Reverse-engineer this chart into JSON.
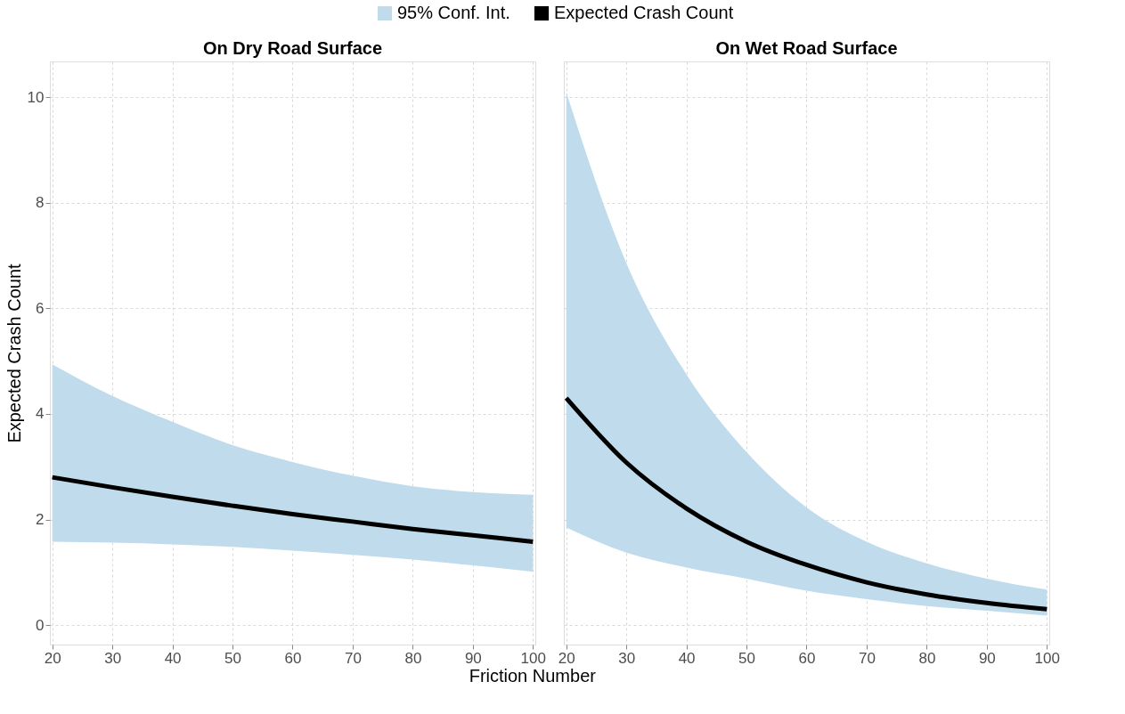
{
  "chart_data": [
    {
      "type": "line",
      "title": "On Dry Road Surface",
      "xlabel": "Friction Number",
      "ylabel": "Expected Crash Count",
      "x": [
        20,
        30,
        40,
        50,
        60,
        70,
        80,
        90,
        100
      ],
      "series": [
        {
          "name": "95% Conf. Int.",
          "type": "area",
          "color": "#c0dcec",
          "values": [
            null,
            null,
            null,
            null,
            null,
            null,
            null,
            null,
            null
          ],
          "lower": [
            1.58,
            1.56,
            1.53,
            1.48,
            1.41,
            1.33,
            1.24,
            1.13,
            1.01
          ],
          "upper": [
            4.94,
            4.34,
            3.85,
            3.41,
            3.09,
            2.83,
            2.63,
            2.52,
            2.47
          ]
        },
        {
          "name": "Expected Crash Count",
          "color": "#000000",
          "values": [
            2.8,
            2.61,
            2.43,
            2.26,
            2.1,
            1.96,
            1.82,
            1.7,
            1.58
          ]
        }
      ],
      "xlim": [
        19.6,
        100.4
      ],
      "ylim": [
        -0.37,
        10.68
      ],
      "xticks": [
        20,
        30,
        40,
        50,
        60,
        70,
        80,
        90,
        100
      ],
      "yticks": [
        0,
        2,
        4,
        6,
        8,
        10
      ],
      "grid": true,
      "legend": "top"
    },
    {
      "type": "line",
      "title": "On Wet Road Surface",
      "x": [
        20,
        30,
        40,
        50,
        60,
        70,
        80,
        90,
        100
      ],
      "series": [
        {
          "type": "area",
          "color": "#c0dcec",
          "values": [
            null,
            null,
            null,
            null,
            null,
            null,
            null,
            null,
            null
          ],
          "lower": [
            1.85,
            1.37,
            1.09,
            0.88,
            0.65,
            0.49,
            0.36,
            0.27,
            0.18
          ],
          "upper": [
            10.1,
            6.86,
            4.75,
            3.28,
            2.23,
            1.58,
            1.17,
            0.88,
            0.67
          ]
        },
        {
          "color": "#000000",
          "values": [
            4.3,
            3.08,
            2.21,
            1.58,
            1.14,
            0.81,
            0.58,
            0.42,
            0.3
          ]
        }
      ],
      "xlim": [
        19.6,
        100.4
      ],
      "ylim": [
        -0.37,
        10.68
      ],
      "xticks": [
        20,
        30,
        40,
        50,
        60,
        70,
        80,
        90,
        100
      ],
      "yticks": [
        0,
        2,
        4,
        6,
        8,
        10
      ],
      "grid": true,
      "tick_labels": "x"
    }
  ]
}
